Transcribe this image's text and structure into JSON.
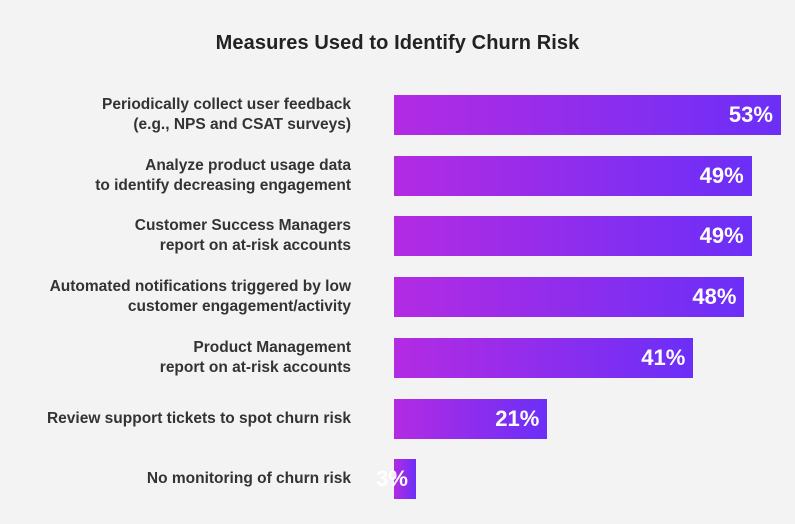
{
  "chart_data": {
    "type": "bar",
    "orientation": "horizontal",
    "title": "Measures Used to Identify Churn Risk",
    "categories": [
      "Periodically collect user feedback\n(e.g., NPS and CSAT surveys)",
      "Analyze product usage data\nto identify decreasing engagement",
      "Customer Success Managers\nreport on at-risk accounts",
      "Automated notifications triggered by low\ncustomer engagement/activity",
      "Product Management\nreport on at-risk accounts",
      "Review support tickets to spot churn risk",
      "No monitoring of churn risk"
    ],
    "values": [
      53,
      49,
      49,
      48,
      41,
      21,
      3
    ],
    "value_labels": [
      "53%",
      "49%",
      "49%",
      "48%",
      "41%",
      "21%",
      "3%"
    ],
    "unit": "%",
    "xlim": [
      0,
      55
    ],
    "grid": false,
    "legend": "none",
    "colors": {
      "bar_gradient_start": "#b32be3",
      "bar_gradient_end": "#6b2ff7",
      "label_text": "#333333",
      "value_text": "#ffffff",
      "background": "#f3f3f3"
    }
  }
}
